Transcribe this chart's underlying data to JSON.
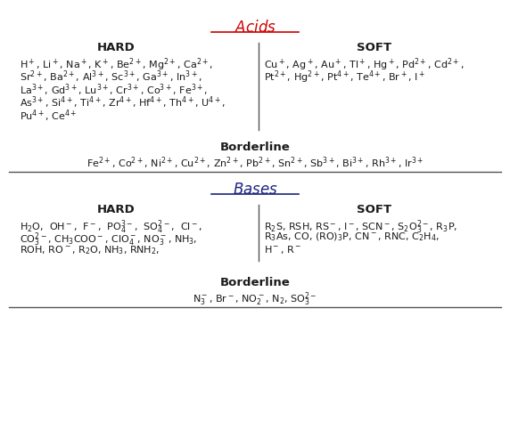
{
  "title_acids": "$\\it{Acids}$",
  "title_bases": "$\\it{Bases}$",
  "hard_label": "HARD",
  "soft_label": "SOFT",
  "borderline_label": "Borderline",
  "acids_hard_lines": [
    "H$^+$, Li$^+$, Na$^+$, K$^+$, Be$^{2+}$, Mg$^{2+}$, Ca$^{2+}$,",
    "Sr$^{2+}$, Ba$^{2+}$, Al$^{3+}$, Sc$^{3+}$, Ga$^{3+}$, In$^{3+}$,",
    "La$^{3+}$, Gd$^{3+}$, Lu$^{3+}$, Cr$^{3+}$, Co$^{3+}$, Fe$^{3+}$,",
    "As$^{3+}$, Si$^{4+}$, Ti$^{4+}$, Zr$^{4+}$, Hf$^{4+}$, Th$^{4+}$, U$^{4+}$,",
    "Pu$^{4+}$, Ce$^{4+}$"
  ],
  "acids_soft_lines": [
    "Cu$^+$, Ag$^+$, Au$^+$, Tl$^+$, Hg$^+$, Pd$^{2+}$, Cd$^{2+}$,",
    "Pt$^{2+}$, Hg$^{2+}$, Pt$^{4+}$, Te$^{4+}$, Br$^+$, I$^+$"
  ],
  "acids_borderline": "Fe$^{2+}$, Co$^{2+}$, Ni$^{2+}$, Cu$^{2+}$, Zn$^{2+}$, Pb$^{2+}$, Sn$^{2+}$, Sb$^{3+}$, Bi$^{3+}$, Rh$^{3+}$, Ir$^{3+}$",
  "bases_hard_lines": [
    "H$_2$O,  OH$^-$,  F$^-$,  PO$_4^{3-}$,  SO$_4^{2-}$,  Cl$^-$,",
    "CO$_3^{2-}$, CH$_3$COO$^-$, ClO$_4^-$, NO$_3^-$, NH$_3$,",
    "ROH, RO$^-$, R$_2$O, NH$_3$, RNH$_2$,"
  ],
  "bases_soft_lines": [
    "R$_2$S, RSH, RS$^-$, I$^-$, SCN$^-$, S$_2$O$_3^{2-}$, R$_3$P,",
    "R$_3$As, CO, (RO)$_3$P, CN$^-$, RNC, C$_2$H$_4$,",
    "H$^-$, R$^-$"
  ],
  "bases_borderline": "N$_3^-$, Br$^-$, NO$_2^-$, N$_2$, SO$_3^{2-}$",
  "bg_color": "#ffffff",
  "text_color_black": "#1a1a1a",
  "text_color_acids": "#cc0000",
  "text_color_bases": "#1a237e",
  "divider_color": "#555555"
}
